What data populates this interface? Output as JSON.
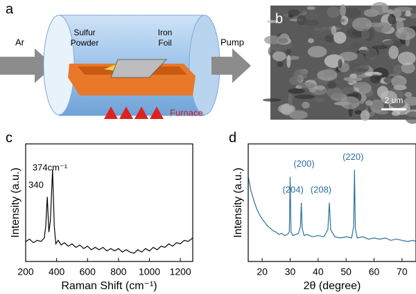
{
  "panels": {
    "a": {
      "label": "a",
      "inlet": "Ar",
      "outlet": "Pump",
      "sulfur": [
        "Sulfur",
        "Powder"
      ],
      "iron": [
        "Iron",
        "Foil"
      ],
      "furnace": "Furnace"
    },
    "b": {
      "label": "b",
      "scale_bar": "2 um"
    }
  },
  "chart_data": [
    {
      "type": "line",
      "label": "c",
      "x_label": "Raman Shift (cm⁻¹)",
      "y_label": "Intensity (a.u.)",
      "color": "#000000",
      "annotations": [
        "340",
        "374cm⁻¹"
      ],
      "x": [
        200,
        225,
        250,
        275,
        300,
        320,
        330,
        340,
        350,
        360,
        374,
        385,
        395,
        410,
        430,
        450,
        475,
        500,
        525,
        550,
        575,
        600,
        625,
        650,
        675,
        700,
        725,
        750,
        775,
        800,
        825,
        850,
        875,
        900,
        925,
        950,
        975,
        1000,
        1025,
        1050,
        1075,
        1100,
        1125,
        1150,
        1175,
        1200,
        1225,
        1250,
        1280
      ],
      "values": [
        0.17,
        0.19,
        0.16,
        0.18,
        0.17,
        0.2,
        0.3,
        0.55,
        0.25,
        0.35,
        0.78,
        0.3,
        0.15,
        0.18,
        0.14,
        0.16,
        0.13,
        0.15,
        0.12,
        0.14,
        0.11,
        0.13,
        0.1,
        0.12,
        0.1,
        0.12,
        0.09,
        0.11,
        0.09,
        0.11,
        0.08,
        0.1,
        0.08,
        0.07,
        0.1,
        0.08,
        0.11,
        0.09,
        0.12,
        0.1,
        0.13,
        0.12,
        0.15,
        0.13,
        0.16,
        0.15,
        0.18,
        0.17,
        0.2
      ],
      "xlim": [
        200,
        1280
      ],
      "ylim": [
        0,
        1
      ],
      "xticks": [
        200,
        400,
        600,
        800,
        1000,
        1200
      ]
    },
    {
      "type": "line",
      "label": "d",
      "x_label": "2θ (degree)",
      "y_label": "Intensity (a.u.)",
      "color": "#2a6f9b",
      "annotations": [
        "(200)",
        "(204)",
        "(208)",
        "(220)"
      ],
      "x": [
        15,
        16,
        17,
        18,
        19,
        20,
        21,
        22,
        23,
        24,
        25,
        26,
        27,
        28,
        29,
        29.7,
        30,
        30.3,
        31,
        32,
        33,
        33.7,
        34,
        34.3,
        35,
        36,
        38,
        40,
        42,
        43.5,
        44,
        44.5,
        46,
        48,
        50,
        52,
        52.7,
        53,
        53.3,
        54,
        56,
        58,
        60,
        62,
        64,
        66,
        68,
        70,
        72,
        74,
        75
      ],
      "values": [
        0.72,
        0.6,
        0.52,
        0.45,
        0.4,
        0.36,
        0.33,
        0.3,
        0.28,
        0.26,
        0.25,
        0.23,
        0.24,
        0.22,
        0.23,
        0.25,
        0.72,
        0.25,
        0.22,
        0.23,
        0.24,
        0.3,
        0.5,
        0.28,
        0.22,
        0.23,
        0.21,
        0.22,
        0.21,
        0.27,
        0.5,
        0.27,
        0.21,
        0.2,
        0.21,
        0.2,
        0.3,
        0.78,
        0.28,
        0.2,
        0.21,
        0.19,
        0.2,
        0.19,
        0.2,
        0.18,
        0.19,
        0.18,
        0.17,
        0.18,
        0.17
      ],
      "xlim": [
        15,
        75
      ],
      "ylim": [
        0,
        1
      ],
      "xticks": [
        20,
        30,
        40,
        50,
        60,
        70
      ]
    }
  ]
}
